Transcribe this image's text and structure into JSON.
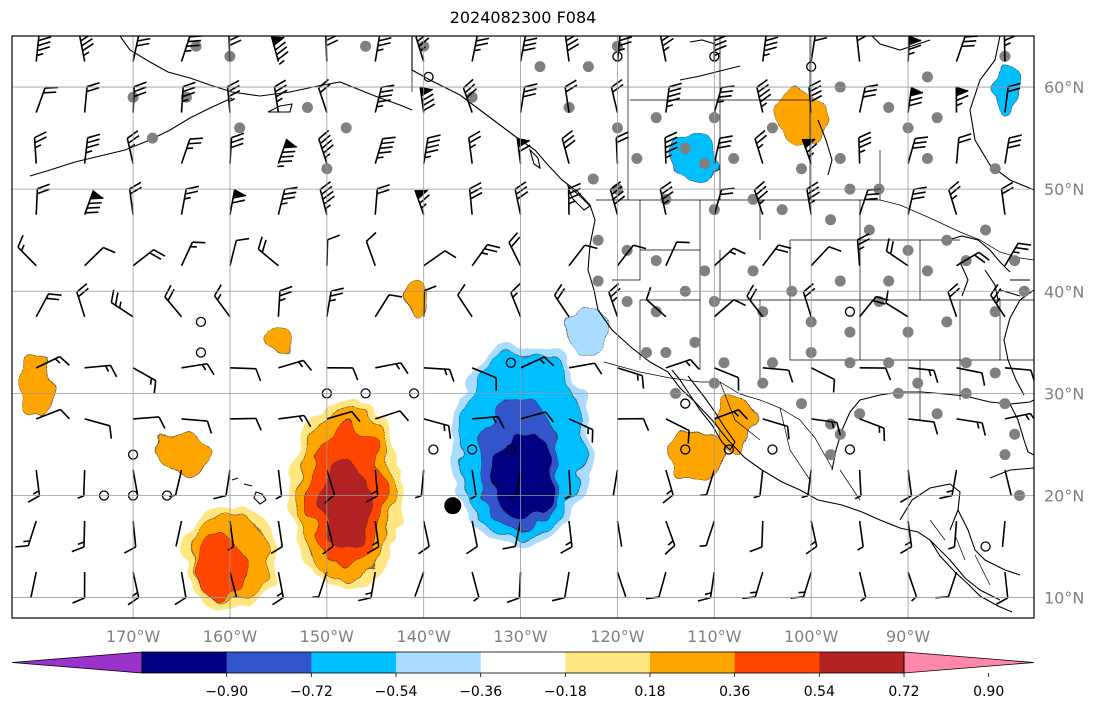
{
  "title": "2024082300 F084",
  "map": {
    "projection": "plate-carree",
    "lon_range": [
      -182.5,
      -77
    ],
    "lat_range": [
      8,
      65
    ],
    "gridlines": true,
    "lon_ticks": [
      {
        "value": -170,
        "label": "170°W"
      },
      {
        "value": -160,
        "label": "160°W"
      },
      {
        "value": -150,
        "label": "150°W"
      },
      {
        "value": -140,
        "label": "140°W"
      },
      {
        "value": -130,
        "label": "130°W"
      },
      {
        "value": -120,
        "label": "120°W"
      },
      {
        "value": -110,
        "label": "110°W"
      },
      {
        "value": -100,
        "label": "100°W"
      },
      {
        "value": -90,
        "label": "90°W"
      }
    ],
    "lat_ticks": [
      {
        "value": 60,
        "label": "60°N"
      },
      {
        "value": 50,
        "label": "50°N"
      },
      {
        "value": 40,
        "label": "40°N"
      },
      {
        "value": 30,
        "label": "30°N"
      },
      {
        "value": 20,
        "label": "20°N"
      },
      {
        "value": 10,
        "label": "10°N"
      }
    ],
    "tick_color": "#808080"
  },
  "colorbar": {
    "orientation": "horizontal",
    "extend": "both",
    "colors": [
      "#9933cc",
      "#000080",
      "#3355cc",
      "#00bfff",
      "#aadcff",
      "#ffffff",
      "#ffe680",
      "#ffa500",
      "#ff4500",
      "#b22222",
      "#ff88aa"
    ],
    "ticks": [
      "−0.90",
      "−0.72",
      "−0.54",
      "−0.36",
      "−0.18",
      "0.18",
      "0.36",
      "0.54",
      "0.72",
      "0.90"
    ]
  },
  "field_blobs": [
    {
      "center": [
        -130,
        25
      ],
      "value": -0.54
    },
    {
      "center": [
        -130,
        23
      ],
      "value": -0.72
    },
    {
      "center": [
        -129.5,
        22
      ],
      "value": -0.9
    },
    {
      "center": [
        -148,
        20
      ],
      "value": 0.36
    },
    {
      "center": [
        -148,
        20
      ],
      "value": 0.54
    },
    {
      "center": [
        -148,
        19
      ],
      "value": 0.72
    },
    {
      "center": [
        -160,
        14
      ],
      "value": 0.36
    },
    {
      "center": [
        -161,
        13
      ],
      "value": 0.54
    },
    {
      "center": [
        -108,
        27
      ],
      "value": 0.36
    },
    {
      "center": [
        -112,
        24
      ],
      "value": 0.36
    },
    {
      "center": [
        -101,
        57
      ],
      "value": 0.36
    },
    {
      "center": [
        -112,
        53
      ],
      "value": -0.54
    },
    {
      "center": [
        -123,
        36
      ],
      "value": -0.36
    },
    {
      "center": [
        -165,
        24
      ],
      "value": 0.36
    },
    {
      "center": [
        -180,
        31
      ],
      "value": 0.36
    },
    {
      "center": [
        -155,
        35
      ],
      "value": 0.36
    },
    {
      "center": [
        -141,
        39
      ],
      "value": 0.36
    },
    {
      "center": [
        -80,
        60
      ],
      "value": -0.54
    }
  ],
  "station_markers": {
    "filled": [
      [
        -163.5,
        64
      ],
      [
        -160,
        63
      ],
      [
        -146,
        64
      ],
      [
        -140,
        64
      ],
      [
        -168,
        55
      ],
      [
        -159,
        56
      ],
      [
        -164.5,
        59
      ],
      [
        -152,
        58
      ],
      [
        -148,
        56
      ],
      [
        -128,
        62
      ],
      [
        -123,
        62
      ],
      [
        -116,
        57
      ],
      [
        -110,
        57
      ],
      [
        -104,
        56
      ],
      [
        -97,
        60
      ],
      [
        -92,
        58
      ],
      [
        -88,
        61
      ],
      [
        -80,
        63
      ],
      [
        -97,
        53
      ],
      [
        -113,
        54
      ],
      [
        -111,
        52.5
      ],
      [
        -108,
        53
      ],
      [
        -101,
        52
      ],
      [
        -96,
        50
      ],
      [
        -93,
        50
      ],
      [
        -88,
        53
      ],
      [
        -81,
        52
      ],
      [
        -122.5,
        51
      ],
      [
        -120,
        50
      ],
      [
        -115,
        49
      ],
      [
        -110,
        48
      ],
      [
        -106,
        49
      ],
      [
        -103,
        48
      ],
      [
        -98,
        47
      ],
      [
        -94,
        46
      ],
      [
        -90,
        44
      ],
      [
        -86,
        45
      ],
      [
        -82,
        46
      ],
      [
        -122,
        45
      ],
      [
        -119,
        44
      ],
      [
        -116,
        43
      ],
      [
        -111,
        42
      ],
      [
        -106,
        42
      ],
      [
        -102,
        40
      ],
      [
        -97,
        41
      ],
      [
        -92,
        41
      ],
      [
        -88,
        42
      ],
      [
        -84,
        43
      ],
      [
        -79,
        43
      ],
      [
        -122,
        41
      ],
      [
        -119,
        39
      ],
      [
        -116,
        38
      ],
      [
        -113,
        40
      ],
      [
        -110,
        39
      ],
      [
        -105,
        38
      ],
      [
        -100,
        37
      ],
      [
        -96,
        36
      ],
      [
        -93,
        39
      ],
      [
        -90,
        36
      ],
      [
        -86,
        37
      ],
      [
        -81,
        38
      ],
      [
        -78,
        40
      ],
      [
        -117,
        34
      ],
      [
        -115,
        34
      ],
      [
        -112,
        35
      ],
      [
        -109,
        33
      ],
      [
        -104,
        33
      ],
      [
        -100,
        34
      ],
      [
        -96,
        33
      ],
      [
        -92,
        33
      ],
      [
        -89,
        31
      ],
      [
        -84,
        33
      ],
      [
        -81,
        32
      ],
      [
        -114,
        30
      ],
      [
        -110,
        31
      ],
      [
        -105,
        31
      ],
      [
        -101,
        29
      ],
      [
        -98,
        27
      ],
      [
        -95,
        28
      ],
      [
        -91,
        30
      ],
      [
        -87,
        28
      ],
      [
        -84,
        30
      ],
      [
        -80,
        29
      ],
      [
        -79,
        26
      ],
      [
        -98,
        24
      ],
      [
        -97,
        26
      ],
      [
        -80,
        24
      ],
      [
        -78.5,
        20
      ],
      [
        -120,
        64
      ],
      [
        -87,
        57
      ],
      [
        -90,
        56
      ],
      [
        -125,
        58
      ],
      [
        -135,
        59
      ],
      [
        -170,
        59
      ],
      [
        -150,
        52
      ],
      [
        -120,
        56
      ],
      [
        -118,
        53
      ]
    ],
    "open": [
      [
        -139.5,
        61
      ],
      [
        -146,
        30
      ],
      [
        -141,
        30
      ],
      [
        -150,
        30
      ],
      [
        -170,
        24
      ],
      [
        -170,
        20
      ],
      [
        -166.5,
        20
      ],
      [
        -173,
        20
      ],
      [
        -163,
        34
      ],
      [
        -163,
        37
      ],
      [
        -131,
        33
      ],
      [
        -131,
        24.5
      ],
      [
        -135,
        24.5
      ],
      [
        -139,
        24.5
      ],
      [
        -113,
        29
      ],
      [
        -113,
        24.5
      ],
      [
        -108.5,
        24.5
      ],
      [
        -104,
        24.5
      ],
      [
        -96,
        24.5
      ],
      [
        -82,
        15
      ],
      [
        -96,
        38
      ],
      [
        -120,
        63
      ],
      [
        -110,
        63
      ],
      [
        -100,
        62
      ]
    ],
    "big": [
      [
        -137,
        19
      ]
    ]
  },
  "wind_barbs": {
    "spacing_deg": 5,
    "lon_range": [
      -180,
      -80
    ],
    "lat_range": [
      10,
      62.5
    ]
  }
}
